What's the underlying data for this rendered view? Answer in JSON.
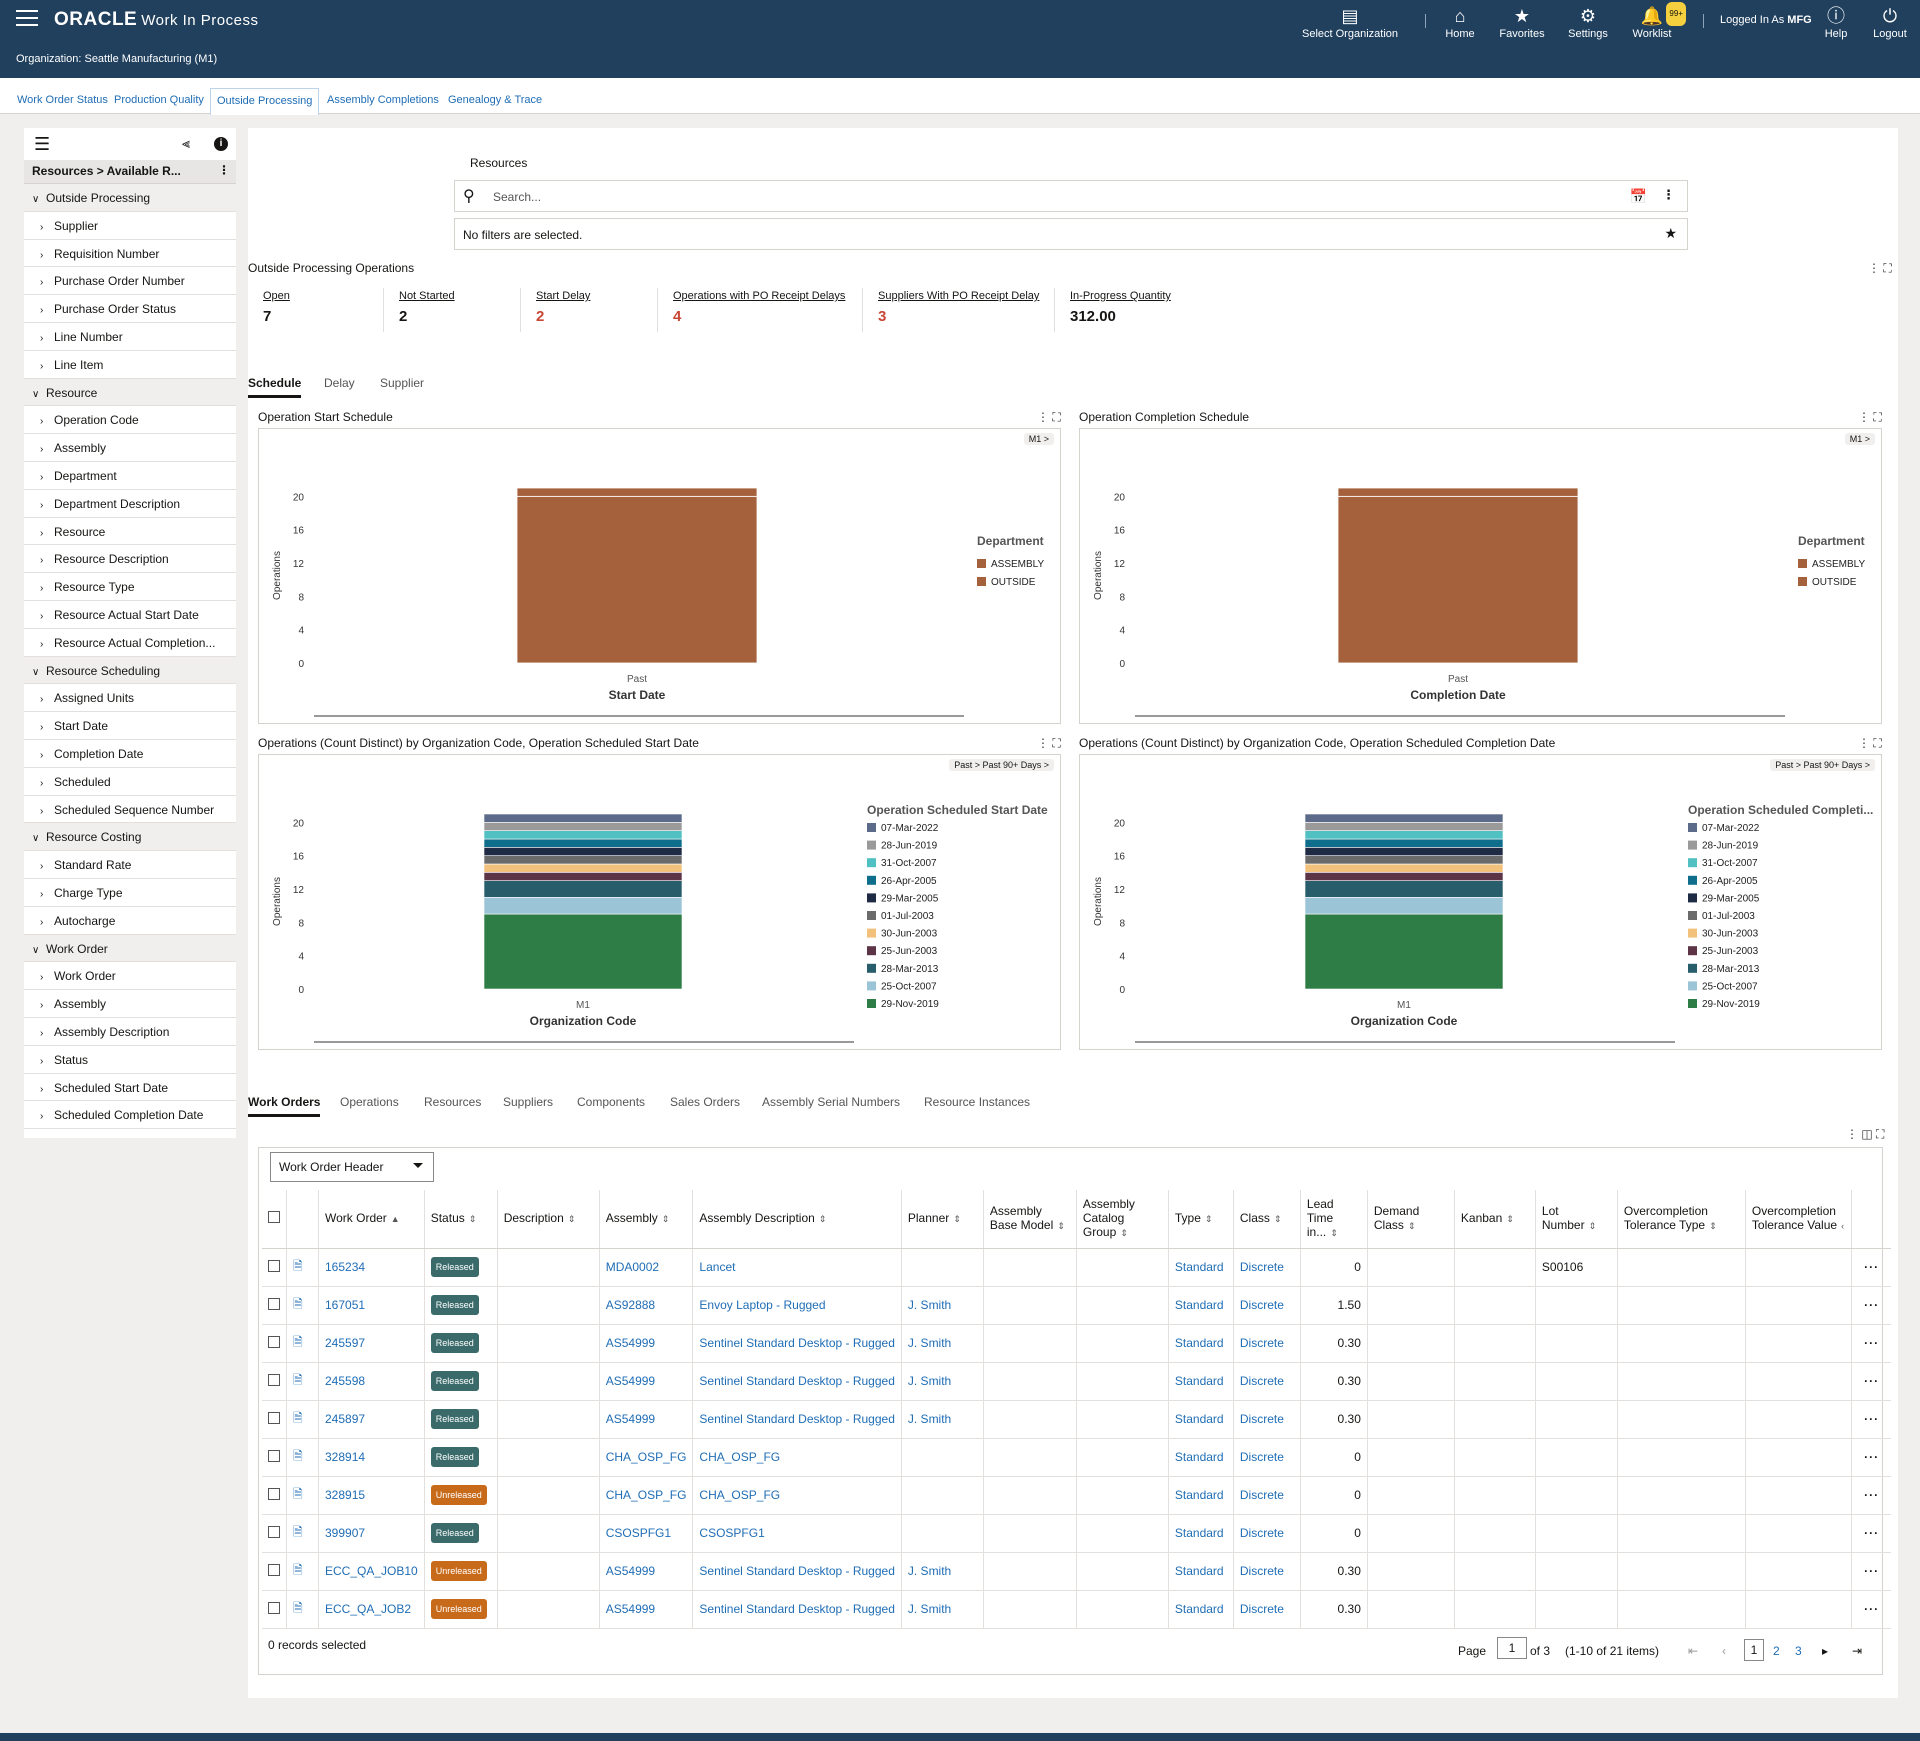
{
  "header": {
    "brand": "ORACLE",
    "app_title": "Work In Process",
    "organization": "Organization: Seattle Manufacturing (M1)",
    "nav": [
      {
        "label": "Select Organization",
        "icon": "select-organization-icon"
      },
      {
        "label": "Home",
        "icon": "home-icon"
      },
      {
        "label": "Favorites",
        "icon": "star-icon"
      },
      {
        "label": "Settings",
        "icon": "gear-icon"
      },
      {
        "label": "Worklist",
        "icon": "bell-icon",
        "badge": "99+"
      },
      {
        "label": "Help",
        "icon": "help-icon"
      },
      {
        "label": "Logout",
        "icon": "power-icon"
      }
    ],
    "logged_in_prefix": "Logged In As",
    "logged_in_user": "MFG"
  },
  "page_tabs": [
    "Work Order Status",
    "Production Quality",
    "Outside Processing",
    "Assembly Completions",
    "Genealogy & Trace"
  ],
  "page_tabs_active": "Outside Processing",
  "left_panel": {
    "breadcrumb": "Resources > Available R...",
    "rows": [
      {
        "label": "Outside Processing",
        "group": true
      },
      {
        "label": "Supplier",
        "group": false
      },
      {
        "label": "Requisition Number",
        "group": false
      },
      {
        "label": "Purchase Order Number",
        "group": false
      },
      {
        "label": "Purchase Order Status",
        "group": false
      },
      {
        "label": "Line Number",
        "group": false
      },
      {
        "label": "Line Item",
        "group": false
      },
      {
        "label": "Resource",
        "group": true
      },
      {
        "label": "Operation Code",
        "group": false
      },
      {
        "label": "Assembly",
        "group": false
      },
      {
        "label": "Department",
        "group": false
      },
      {
        "label": "Department Description",
        "group": false
      },
      {
        "label": "Resource",
        "group": false
      },
      {
        "label": "Resource Description",
        "group": false
      },
      {
        "label": "Resource Type",
        "group": false
      },
      {
        "label": "Resource Actual Start Date",
        "group": false
      },
      {
        "label": "Resource Actual Completion...",
        "group": false
      },
      {
        "label": "Resource Scheduling",
        "group": true
      },
      {
        "label": "Assigned Units",
        "group": false
      },
      {
        "label": "Start Date",
        "group": false
      },
      {
        "label": "Completion Date",
        "group": false
      },
      {
        "label": "Scheduled",
        "group": false
      },
      {
        "label": "Scheduled Sequence Number",
        "group": false
      },
      {
        "label": "Resource Costing",
        "group": true
      },
      {
        "label": "Standard Rate",
        "group": false
      },
      {
        "label": "Charge Type",
        "group": false
      },
      {
        "label": "Autocharge",
        "group": false
      },
      {
        "label": "Work Order",
        "group": true
      },
      {
        "label": "Work Order",
        "group": false
      },
      {
        "label": "Assembly",
        "group": false
      },
      {
        "label": "Assembly Description",
        "group": false
      },
      {
        "label": "Status",
        "group": false
      },
      {
        "label": "Scheduled Start Date",
        "group": false
      },
      {
        "label": "Scheduled Completion Date",
        "group": false
      }
    ]
  },
  "search": {
    "label": "Resources",
    "placeholder": "Search...",
    "filters_text": "No filters are selected."
  },
  "operations": {
    "title": "Outside Processing Operations",
    "metrics": [
      {
        "label": "Open",
        "value": "7",
        "alert": false
      },
      {
        "label": "Not Started",
        "value": "2",
        "alert": false
      },
      {
        "label": "Start Delay",
        "value": "2",
        "alert": true
      },
      {
        "label": "Operations with PO Receipt Delays",
        "value": "4",
        "alert": true
      },
      {
        "label": "Suppliers With PO Receipt Delay",
        "value": "3",
        "alert": true
      },
      {
        "label": "In-Progress Quantity",
        "value": "312.00",
        "alert": false
      }
    ],
    "tabs": [
      "Schedule",
      "Delay",
      "Supplier"
    ],
    "active_tab": "Schedule"
  },
  "colors": {
    "header_bg": "#20405e",
    "link": "#1f6db5",
    "alert": "#c74634",
    "bar_brown": "#a5603c",
    "status_released": "#3a6b6a",
    "status_unreleased": "#c76a1a"
  },
  "chart_data": [
    {
      "type": "bar",
      "title": "Operation Start Schedule",
      "drill": "M1 >",
      "categories": [
        "Past"
      ],
      "series": [
        {
          "name": "ASSEMBLY",
          "values": [
            1
          ]
        },
        {
          "name": "OUTSIDE",
          "values": [
            20
          ]
        }
      ],
      "xlabel": "Start Date",
      "ylabel": "Operations",
      "yticks": [
        0,
        4,
        8,
        12,
        16,
        20
      ],
      "ylim": [
        0,
        21
      ],
      "legend_title": "Department",
      "legend_colors": [
        "#a5603c",
        "#a5603c"
      ],
      "legend_position": "right"
    },
    {
      "type": "bar",
      "title": "Operation Completion Schedule",
      "drill": "M1 >",
      "categories": [
        "Past"
      ],
      "series": [
        {
          "name": "ASSEMBLY",
          "values": [
            1
          ]
        },
        {
          "name": "OUTSIDE",
          "values": [
            20
          ]
        }
      ],
      "xlabel": "Completion Date",
      "ylabel": "Operations",
      "yticks": [
        0,
        4,
        8,
        12,
        16,
        20
      ],
      "ylim": [
        0,
        21
      ],
      "legend_title": "Department",
      "legend_colors": [
        "#a5603c",
        "#a5603c"
      ],
      "legend_position": "right"
    },
    {
      "type": "bar",
      "stacked": true,
      "title": "Operations (Count Distinct) by Organization Code, Operation Scheduled Start Date",
      "drill": "Past > Past 90+ Days >",
      "categories": [
        "M1"
      ],
      "series": [
        {
          "name": "29-Nov-2019",
          "values": [
            9
          ]
        },
        {
          "name": "25-Oct-2007",
          "values": [
            2
          ]
        },
        {
          "name": "28-Mar-2013",
          "values": [
            2
          ]
        },
        {
          "name": "25-Jun-2003",
          "values": [
            1
          ]
        },
        {
          "name": "30-Jun-2003",
          "values": [
            1
          ]
        },
        {
          "name": "01-Jul-2003",
          "values": [
            1
          ]
        },
        {
          "name": "29-Mar-2005",
          "values": [
            1
          ]
        },
        {
          "name": "26-Apr-2005",
          "values": [
            1
          ]
        },
        {
          "name": "31-Oct-2007",
          "values": [
            1
          ]
        },
        {
          "name": "28-Jun-2019",
          "values": [
            1
          ]
        },
        {
          "name": "07-Mar-2022",
          "values": [
            1
          ]
        }
      ],
      "series_colors": [
        "#2e7d46",
        "#9bc4d6",
        "#285d6b",
        "#5c3446",
        "#f2c27c",
        "#6b6b6b",
        "#1f2a44",
        "#0e6e8c",
        "#50c0c2",
        "#9a9a9a",
        "#5d6b8a"
      ],
      "xlabel": "Organization Code",
      "ylabel": "Operations",
      "yticks": [
        0,
        4,
        8,
        12,
        16,
        20
      ],
      "ylim": [
        0,
        21
      ],
      "legend_title": "Operation Scheduled Start Date",
      "legend_order": [
        "07-Mar-2022",
        "28-Jun-2019",
        "31-Oct-2007",
        "26-Apr-2005",
        "29-Mar-2005",
        "01-Jul-2003",
        "30-Jun-2003",
        "25-Jun-2003",
        "28-Mar-2013",
        "25-Oct-2007",
        "29-Nov-2019"
      ],
      "legend_position": "right"
    },
    {
      "type": "bar",
      "stacked": true,
      "title": "Operations (Count Distinct) by Organization Code, Operation Scheduled Completion Date",
      "drill": "Past > Past 90+ Days >",
      "categories": [
        "M1"
      ],
      "series": [
        {
          "name": "29-Nov-2019",
          "values": [
            9
          ]
        },
        {
          "name": "25-Oct-2007",
          "values": [
            2
          ]
        },
        {
          "name": "28-Mar-2013",
          "values": [
            2
          ]
        },
        {
          "name": "25-Jun-2003",
          "values": [
            1
          ]
        },
        {
          "name": "30-Jun-2003",
          "values": [
            1
          ]
        },
        {
          "name": "01-Jul-2003",
          "values": [
            1
          ]
        },
        {
          "name": "29-Mar-2005",
          "values": [
            1
          ]
        },
        {
          "name": "26-Apr-2005",
          "values": [
            1
          ]
        },
        {
          "name": "31-Oct-2007",
          "values": [
            1
          ]
        },
        {
          "name": "28-Jun-2019",
          "values": [
            1
          ]
        },
        {
          "name": "07-Mar-2022",
          "values": [
            1
          ]
        }
      ],
      "series_colors": [
        "#2e7d46",
        "#9bc4d6",
        "#285d6b",
        "#5c3446",
        "#f2c27c",
        "#6b6b6b",
        "#1f2a44",
        "#0e6e8c",
        "#50c0c2",
        "#9a9a9a",
        "#5d6b8a"
      ],
      "xlabel": "Organization Code",
      "ylabel": "Operations",
      "yticks": [
        0,
        4,
        8,
        12,
        16,
        20
      ],
      "ylim": [
        0,
        21
      ],
      "legend_title": "Operation Scheduled Completi...",
      "legend_order": [
        "07-Mar-2022",
        "28-Jun-2019",
        "31-Oct-2007",
        "26-Apr-2005",
        "29-Mar-2005",
        "01-Jul-2003",
        "30-Jun-2003",
        "25-Jun-2003",
        "28-Mar-2013",
        "25-Oct-2007",
        "29-Nov-2019"
      ],
      "legend_position": "right"
    }
  ],
  "detail_tabs": [
    "Work Orders",
    "Operations",
    "Resources",
    "Suppliers",
    "Components",
    "Sales Orders",
    "Assembly Serial Numbers",
    "Resource Instances"
  ],
  "detail_active": "Work Orders",
  "table": {
    "view_select": "Work Order Header",
    "columns": [
      "Work Order",
      "Status",
      "Description",
      "Assembly",
      "Assembly Description",
      "Planner",
      "Assembly Base Model",
      "Assembly Catalog Group",
      "Type",
      "Class",
      "Lead Time in...",
      "Demand Class",
      "Kanban",
      "Lot Number",
      "Overcompletion Tolerance Type",
      "Overcompletion Tolerance Value"
    ],
    "rows": [
      {
        "wo": "165234",
        "status": "Released",
        "desc": "",
        "assembly": "MDA0002",
        "adesc": "Lancet",
        "planner": "",
        "base": "",
        "catalog": "",
        "type": "Standard",
        "class": "Discrete",
        "lead": "0",
        "demand": "",
        "kanban": "",
        "lot": "S00106",
        "otype": "",
        "oval": ""
      },
      {
        "wo": "167051",
        "status": "Released",
        "desc": "",
        "assembly": "AS92888",
        "adesc": "Envoy Laptop - Rugged",
        "planner": "J. Smith",
        "base": "",
        "catalog": "",
        "type": "Standard",
        "class": "Discrete",
        "lead": "1.50",
        "demand": "",
        "kanban": "",
        "lot": "",
        "otype": "",
        "oval": ""
      },
      {
        "wo": "245597",
        "status": "Released",
        "desc": "",
        "assembly": "AS54999",
        "adesc": "Sentinel Standard Desktop - Rugged",
        "planner": "J. Smith",
        "base": "",
        "catalog": "",
        "type": "Standard",
        "class": "Discrete",
        "lead": "0.30",
        "demand": "",
        "kanban": "",
        "lot": "",
        "otype": "",
        "oval": ""
      },
      {
        "wo": "245598",
        "status": "Released",
        "desc": "",
        "assembly": "AS54999",
        "adesc": "Sentinel Standard Desktop - Rugged",
        "planner": "J. Smith",
        "base": "",
        "catalog": "",
        "type": "Standard",
        "class": "Discrete",
        "lead": "0.30",
        "demand": "",
        "kanban": "",
        "lot": "",
        "otype": "",
        "oval": ""
      },
      {
        "wo": "245897",
        "status": "Released",
        "desc": "",
        "assembly": "AS54999",
        "adesc": "Sentinel Standard Desktop - Rugged",
        "planner": "J. Smith",
        "base": "",
        "catalog": "",
        "type": "Standard",
        "class": "Discrete",
        "lead": "0.30",
        "demand": "",
        "kanban": "",
        "lot": "",
        "otype": "",
        "oval": ""
      },
      {
        "wo": "328914",
        "status": "Released",
        "desc": "",
        "assembly": "CHA_OSP_FG",
        "adesc": "CHA_OSP_FG",
        "planner": "",
        "base": "",
        "catalog": "",
        "type": "Standard",
        "class": "Discrete",
        "lead": "0",
        "demand": "",
        "kanban": "",
        "lot": "",
        "otype": "",
        "oval": ""
      },
      {
        "wo": "328915",
        "status": "Unreleased",
        "desc": "",
        "assembly": "CHA_OSP_FG",
        "adesc": "CHA_OSP_FG",
        "planner": "",
        "base": "",
        "catalog": "",
        "type": "Standard",
        "class": "Discrete",
        "lead": "0",
        "demand": "",
        "kanban": "",
        "lot": "",
        "otype": "",
        "oval": ""
      },
      {
        "wo": "399907",
        "status": "Released",
        "desc": "",
        "assembly": "CSOSPFG1",
        "adesc": "CSOSPFG1",
        "planner": "",
        "base": "",
        "catalog": "",
        "type": "Standard",
        "class": "Discrete",
        "lead": "0",
        "demand": "",
        "kanban": "",
        "lot": "",
        "otype": "",
        "oval": ""
      },
      {
        "wo": "ECC_QA_JOB10",
        "status": "Unreleased",
        "desc": "",
        "assembly": "AS54999",
        "adesc": "Sentinel Standard Desktop - Rugged",
        "planner": "J. Smith",
        "base": "",
        "catalog": "",
        "type": "Standard",
        "class": "Discrete",
        "lead": "0.30",
        "demand": "",
        "kanban": "",
        "lot": "",
        "otype": "",
        "oval": ""
      },
      {
        "wo": "ECC_QA_JOB2",
        "status": "Unreleased",
        "desc": "",
        "assembly": "AS54999",
        "adesc": "Sentinel Standard Desktop - Rugged",
        "planner": "J. Smith",
        "base": "",
        "catalog": "",
        "type": "Standard",
        "class": "Discrete",
        "lead": "0.30",
        "demand": "",
        "kanban": "",
        "lot": "",
        "otype": "",
        "oval": ""
      }
    ],
    "records_selected": "0 records selected",
    "pagination": {
      "page_label": "Page",
      "current": "1",
      "of_label": "of 3",
      "range": "(1-10 of 21 items)",
      "pages": [
        "1",
        "2",
        "3"
      ]
    }
  }
}
